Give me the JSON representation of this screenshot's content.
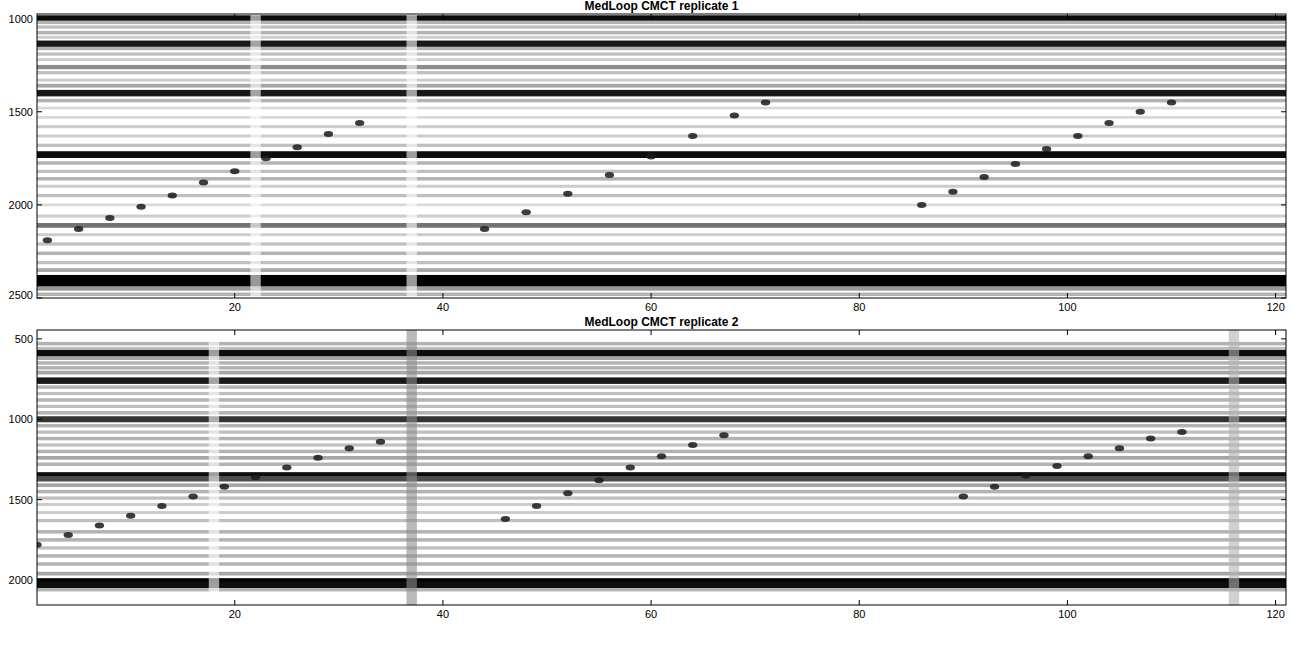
{
  "chart_data": [
    {
      "type": "heatmap",
      "title": "MedLoop CMCT replicate 1",
      "xlim": [
        1,
        121
      ],
      "xticks": [
        20,
        40,
        60,
        80,
        100,
        120
      ],
      "ylim": [
        975,
        2500
      ],
      "yticks": [
        1000,
        1500,
        2000,
        2500
      ],
      "bands": [
        {
          "y": 1000,
          "value": 0.95
        },
        {
          "y": 1020,
          "value": 0.3
        },
        {
          "y": 1045,
          "value": 0.25
        },
        {
          "y": 1075,
          "value": 0.3
        },
        {
          "y": 1100,
          "value": 0.2
        },
        {
          "y": 1135,
          "value": 0.9
        },
        {
          "y": 1160,
          "value": 0.3
        },
        {
          "y": 1190,
          "value": 0.25
        },
        {
          "y": 1220,
          "value": 0.2
        },
        {
          "y": 1260,
          "value": 0.45
        },
        {
          "y": 1290,
          "value": 0.25
        },
        {
          "y": 1330,
          "value": 0.2
        },
        {
          "y": 1360,
          "value": 0.35
        },
        {
          "y": 1400,
          "value": 0.9
        },
        {
          "y": 1440,
          "value": 0.3
        },
        {
          "y": 1480,
          "value": 0.15
        },
        {
          "y": 1530,
          "value": 0.15
        },
        {
          "y": 1580,
          "value": 0.2
        },
        {
          "y": 1630,
          "value": 0.2
        },
        {
          "y": 1680,
          "value": 0.25
        },
        {
          "y": 1730,
          "value": 0.95
        },
        {
          "y": 1775,
          "value": 0.3
        },
        {
          "y": 1820,
          "value": 0.25
        },
        {
          "y": 1860,
          "value": 0.3
        },
        {
          "y": 1900,
          "value": 0.2
        },
        {
          "y": 1950,
          "value": 0.25
        },
        {
          "y": 2000,
          "value": 0.15
        },
        {
          "y": 2060,
          "value": 0.2
        },
        {
          "y": 2110,
          "value": 0.55
        },
        {
          "y": 2160,
          "value": 0.2
        },
        {
          "y": 2210,
          "value": 0.25
        },
        {
          "y": 2260,
          "value": 0.3
        },
        {
          "y": 2310,
          "value": 0.25
        },
        {
          "y": 2350,
          "value": 0.35
        },
        {
          "y": 2395,
          "value": 1.0
        },
        {
          "y": 2420,
          "value": 1.0
        },
        {
          "y": 2450,
          "value": 0.4
        },
        {
          "y": 2480,
          "value": 0.3
        }
      ],
      "columns": [
        {
          "x": 22,
          "value": 0
        },
        {
          "x": 37,
          "value": 0
        }
      ],
      "series": [
        {
          "x": [
            2,
            5,
            8,
            11,
            14,
            17,
            20,
            23,
            26,
            29,
            32
          ],
          "values": [
            2190,
            2130,
            2070,
            2010,
            1950,
            1880,
            1820,
            1750,
            1690,
            1620,
            1560
          ]
        },
        {
          "x": [
            44,
            48,
            52,
            56,
            60,
            64,
            68,
            71
          ],
          "values": [
            2130,
            2040,
            1940,
            1840,
            1740,
            1630,
            1520,
            1450
          ]
        },
        {
          "x": [
            86,
            89,
            92,
            95,
            98,
            101,
            104,
            107,
            110
          ],
          "values": [
            2000,
            1930,
            1850,
            1780,
            1700,
            1630,
            1560,
            1500,
            1450
          ]
        }
      ]
    },
    {
      "type": "heatmap",
      "title": "MedLoop CMCT replicate 2",
      "xlim": [
        1,
        121
      ],
      "xticks": [
        20,
        40,
        60,
        80,
        100,
        120
      ],
      "ylim": [
        445,
        2155
      ],
      "yticks": [
        500,
        1000,
        1500,
        2000
      ],
      "bands": [
        {
          "y": 530,
          "value": 0.3
        },
        {
          "y": 560,
          "value": 0.25
        },
        {
          "y": 590,
          "value": 0.95
        },
        {
          "y": 620,
          "value": 0.35
        },
        {
          "y": 650,
          "value": 0.3
        },
        {
          "y": 680,
          "value": 0.3
        },
        {
          "y": 710,
          "value": 0.35
        },
        {
          "y": 760,
          "value": 0.9
        },
        {
          "y": 800,
          "value": 0.3
        },
        {
          "y": 840,
          "value": 0.25
        },
        {
          "y": 880,
          "value": 0.3
        },
        {
          "y": 920,
          "value": 0.25
        },
        {
          "y": 960,
          "value": 0.3
        },
        {
          "y": 1000,
          "value": 0.8
        },
        {
          "y": 1040,
          "value": 0.3
        },
        {
          "y": 1080,
          "value": 0.25
        },
        {
          "y": 1120,
          "value": 0.3
        },
        {
          "y": 1160,
          "value": 0.25
        },
        {
          "y": 1200,
          "value": 0.3
        },
        {
          "y": 1240,
          "value": 0.35
        },
        {
          "y": 1280,
          "value": 0.3
        },
        {
          "y": 1350,
          "value": 0.95
        },
        {
          "y": 1370,
          "value": 0.7
        },
        {
          "y": 1410,
          "value": 0.35
        },
        {
          "y": 1450,
          "value": 0.3
        },
        {
          "y": 1490,
          "value": 0.25
        },
        {
          "y": 1530,
          "value": 0.2
        },
        {
          "y": 1580,
          "value": 0.2
        },
        {
          "y": 1630,
          "value": 0.25
        },
        {
          "y": 1700,
          "value": 0.3
        },
        {
          "y": 1750,
          "value": 0.3
        },
        {
          "y": 1800,
          "value": 0.25
        },
        {
          "y": 1850,
          "value": 0.3
        },
        {
          "y": 1900,
          "value": 0.3
        },
        {
          "y": 1960,
          "value": 0.35
        },
        {
          "y": 2010,
          "value": 1.0
        },
        {
          "y": 2030,
          "value": 0.95
        },
        {
          "y": 2060,
          "value": 0.3
        }
      ],
      "columns": [
        {
          "x": 18,
          "value": 0
        },
        {
          "x": 37,
          "value": 0.45
        },
        {
          "x": 116,
          "value": 0.3
        }
      ],
      "series": [
        {
          "x": [
            1,
            4,
            7,
            10,
            13,
            16,
            19,
            22,
            25,
            28,
            31,
            34
          ],
          "values": [
            1780,
            1720,
            1660,
            1600,
            1540,
            1480,
            1420,
            1360,
            1300,
            1240,
            1180,
            1140
          ]
        },
        {
          "x": [
            46,
            49,
            52,
            55,
            58,
            61,
            64,
            67
          ],
          "values": [
            1620,
            1540,
            1460,
            1380,
            1300,
            1230,
            1160,
            1100
          ]
        },
        {
          "x": [
            90,
            93,
            96,
            99,
            102,
            105,
            108,
            111
          ],
          "values": [
            1480,
            1420,
            1350,
            1290,
            1230,
            1180,
            1120,
            1080
          ]
        }
      ]
    }
  ]
}
